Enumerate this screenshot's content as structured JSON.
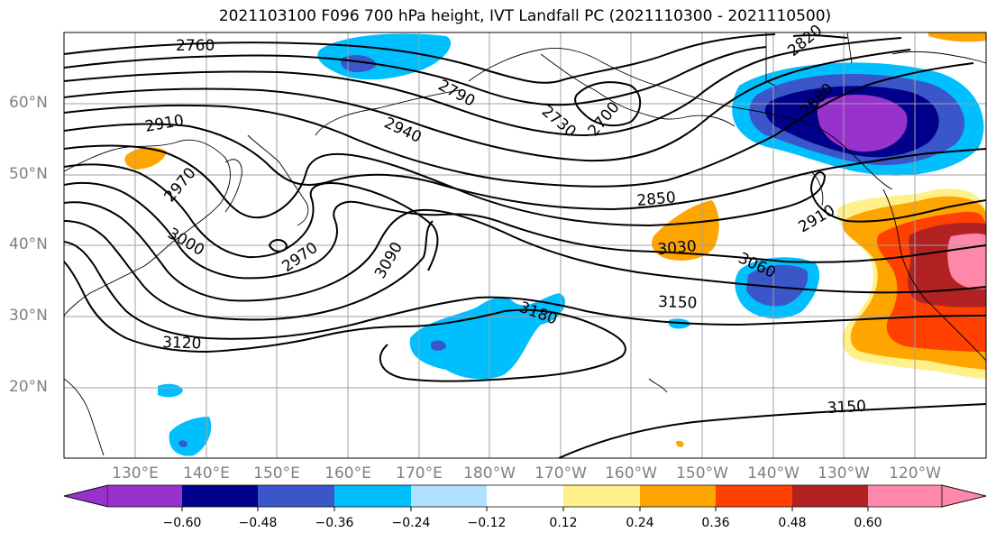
{
  "title": "2021103100 F096 700 hPa height, IVT Landfall PC (2021110300 - 2021110500)",
  "lat_labels": [
    "60°N",
    "50°N",
    "40°N",
    "30°N",
    "20°N"
  ],
  "lon_labels": [
    "130°E",
    "140°E",
    "150°E",
    "160°E",
    "170°E",
    "180°W",
    "170°W",
    "160°W",
    "150°W",
    "140°W",
    "130°W",
    "120°W"
  ],
  "contour_labels": [
    "2760",
    "2790",
    "2820",
    "2880",
    "2910",
    "2940",
    "2730",
    "2700",
    "2970",
    "2850",
    "2910",
    "3000",
    "2970",
    "3030",
    "3060",
    "3090",
    "3150",
    "3180",
    "3120",
    "3150"
  ],
  "colorbar": {
    "ticks": [
      "−0.60",
      "−0.48",
      "−0.36",
      "−0.24",
      "−0.12",
      "0.12",
      "0.24",
      "0.36",
      "0.48",
      "0.60"
    ],
    "colors": [
      "#9932cc",
      "#00008b",
      "#3a56c8",
      "#00bfff",
      "#b0e0ff",
      "#ffffff",
      "#fff08a",
      "#ffa500",
      "#ff4000",
      "#b22222",
      "#ff88aa"
    ]
  },
  "colors": {
    "land_outline": "#000000",
    "grid": "#a0a0a0"
  }
}
